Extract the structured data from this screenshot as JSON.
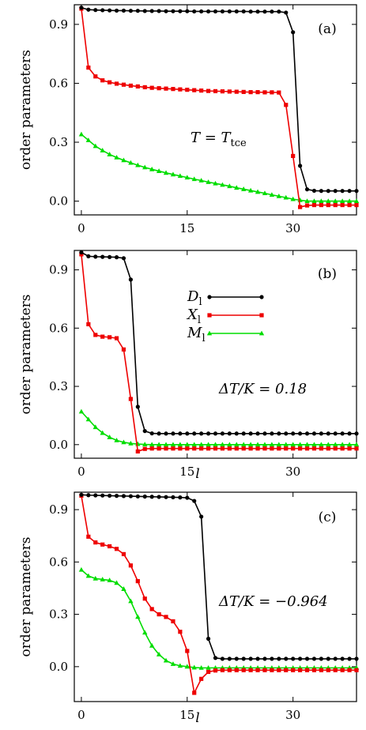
{
  "chart_data": [
    {
      "type": "line",
      "panel_label": "(a)",
      "ylabel": "order parameters",
      "xlabel": "",
      "annotation": "T = T_tce",
      "xlim": [
        -1,
        39
      ],
      "ylim": [
        -0.07,
        1.0
      ],
      "xticks": [
        "0",
        "15",
        "30"
      ],
      "yticks": [
        "0.0",
        "0.3",
        "0.6",
        "0.9"
      ],
      "series": [
        {
          "name": "D_l",
          "color": "#000000",
          "marker": "circle",
          "x": [
            0,
            1,
            2,
            3,
            4,
            5,
            6,
            7,
            8,
            9,
            10,
            11,
            12,
            13,
            14,
            15,
            16,
            17,
            18,
            19,
            20,
            21,
            22,
            23,
            24,
            25,
            26,
            27,
            28,
            29,
            30,
            31,
            32,
            33,
            34,
            35,
            36,
            37,
            38,
            39
          ],
          "y": [
            0.985,
            0.975,
            0.973,
            0.972,
            0.971,
            0.97,
            0.97,
            0.969,
            0.969,
            0.968,
            0.968,
            0.968,
            0.967,
            0.967,
            0.967,
            0.967,
            0.966,
            0.966,
            0.966,
            0.966,
            0.966,
            0.966,
            0.966,
            0.966,
            0.965,
            0.965,
            0.965,
            0.965,
            0.965,
            0.96,
            0.86,
            0.18,
            0.06,
            0.053,
            0.052,
            0.052,
            0.052,
            0.052,
            0.052,
            0.052
          ]
        },
        {
          "name": "X_l",
          "color": "#ee0000",
          "marker": "square",
          "x": [
            0,
            1,
            2,
            3,
            4,
            5,
            6,
            7,
            8,
            9,
            10,
            11,
            12,
            13,
            14,
            15,
            16,
            17,
            18,
            19,
            20,
            21,
            22,
            23,
            24,
            25,
            26,
            27,
            28,
            29,
            30,
            31,
            32,
            33,
            34,
            35,
            36,
            37,
            38,
            39
          ],
          "y": [
            0.98,
            0.68,
            0.635,
            0.615,
            0.605,
            0.598,
            0.593,
            0.588,
            0.584,
            0.58,
            0.577,
            0.575,
            0.573,
            0.571,
            0.569,
            0.567,
            0.565,
            0.563,
            0.561,
            0.56,
            0.559,
            0.558,
            0.557,
            0.556,
            0.555,
            0.555,
            0.554,
            0.554,
            0.553,
            0.49,
            0.23,
            -0.03,
            -0.022,
            -0.02,
            -0.02,
            -0.02,
            -0.02,
            -0.02,
            -0.02,
            -0.02
          ]
        },
        {
          "name": "M_l",
          "color": "#00dd00",
          "marker": "triangle",
          "x": [
            0,
            1,
            2,
            3,
            4,
            5,
            6,
            7,
            8,
            9,
            10,
            11,
            12,
            13,
            14,
            15,
            16,
            17,
            18,
            19,
            20,
            21,
            22,
            23,
            24,
            25,
            26,
            27,
            28,
            29,
            30,
            31,
            32,
            33,
            34,
            35,
            36,
            37,
            38,
            39
          ],
          "y": [
            0.34,
            0.31,
            0.28,
            0.258,
            0.238,
            0.222,
            0.208,
            0.195,
            0.183,
            0.172,
            0.162,
            0.153,
            0.144,
            0.136,
            0.128,
            0.12,
            0.112,
            0.105,
            0.097,
            0.09,
            0.083,
            0.076,
            0.068,
            0.061,
            0.054,
            0.047,
            0.04,
            0.032,
            0.025,
            0.018,
            0.01,
            0.005,
            0.0,
            0.0,
            0.0,
            0.0,
            0.0,
            0.0,
            0.0,
            0.0
          ]
        }
      ]
    },
    {
      "type": "line",
      "panel_label": "(b)",
      "ylabel": "order parameters",
      "xlabel": "l",
      "annotation": "ΔT/K = 0.18",
      "xlim": [
        -1,
        39
      ],
      "ylim": [
        -0.07,
        1.0
      ],
      "xticks": [
        "0",
        "15",
        "30"
      ],
      "yticks": [
        "0.0",
        "0.3",
        "0.6",
        "0.9"
      ],
      "legend": {
        "placement": "upper-middle"
      },
      "series": [
        {
          "name": "D_l",
          "color": "#000000",
          "marker": "circle",
          "x": [
            0,
            1,
            2,
            3,
            4,
            5,
            6,
            7,
            8,
            9,
            10,
            11,
            12,
            13,
            14,
            15,
            16,
            17,
            18,
            19,
            20,
            21,
            22,
            23,
            24,
            25,
            26,
            27,
            28,
            29,
            30,
            31,
            32,
            33,
            34,
            35,
            36,
            37,
            38,
            39
          ],
          "y": [
            0.99,
            0.97,
            0.968,
            0.967,
            0.966,
            0.965,
            0.96,
            0.85,
            0.195,
            0.07,
            0.058,
            0.057,
            0.057,
            0.057,
            0.057,
            0.057,
            0.057,
            0.057,
            0.057,
            0.057,
            0.057,
            0.057,
            0.057,
            0.057,
            0.057,
            0.057,
            0.057,
            0.057,
            0.057,
            0.057,
            0.057,
            0.057,
            0.057,
            0.057,
            0.057,
            0.057,
            0.057,
            0.057,
            0.057,
            0.057
          ]
        },
        {
          "name": "X_l",
          "color": "#ee0000",
          "marker": "square",
          "x": [
            0,
            1,
            2,
            3,
            4,
            5,
            6,
            7,
            8,
            9,
            10,
            11,
            12,
            13,
            14,
            15,
            16,
            17,
            18,
            19,
            20,
            21,
            22,
            23,
            24,
            25,
            26,
            27,
            28,
            29,
            30,
            31,
            32,
            33,
            34,
            35,
            36,
            37,
            38,
            39
          ],
          "y": [
            0.98,
            0.62,
            0.565,
            0.556,
            0.553,
            0.548,
            0.49,
            0.235,
            -0.035,
            -0.022,
            -0.02,
            -0.02,
            -0.02,
            -0.02,
            -0.02,
            -0.02,
            -0.02,
            -0.02,
            -0.02,
            -0.02,
            -0.02,
            -0.02,
            -0.02,
            -0.02,
            -0.02,
            -0.02,
            -0.02,
            -0.02,
            -0.02,
            -0.02,
            -0.02,
            -0.02,
            -0.02,
            -0.02,
            -0.02,
            -0.02,
            -0.02,
            -0.02,
            -0.02,
            -0.02
          ]
        },
        {
          "name": "M_l",
          "color": "#00dd00",
          "marker": "triangle",
          "x": [
            0,
            1,
            2,
            3,
            4,
            5,
            6,
            7,
            8,
            9,
            10,
            11,
            12,
            13,
            14,
            15,
            16,
            17,
            18,
            19,
            20,
            21,
            22,
            23,
            24,
            25,
            26,
            27,
            28,
            29,
            30,
            31,
            32,
            33,
            34,
            35,
            36,
            37,
            38,
            39
          ],
          "y": [
            0.17,
            0.13,
            0.09,
            0.06,
            0.038,
            0.022,
            0.012,
            0.006,
            0.003,
            0.001,
            0.0,
            0.0,
            0.0,
            0.0,
            0.0,
            0.0,
            0.0,
            0.0,
            0.0,
            0.0,
            0.0,
            0.0,
            0.0,
            0.0,
            0.0,
            0.0,
            0.0,
            0.0,
            0.0,
            0.0,
            0.0,
            0.0,
            0.0,
            0.0,
            0.0,
            0.0,
            0.0,
            0.0,
            0.0,
            0.0
          ]
        }
      ]
    },
    {
      "type": "line",
      "panel_label": "(c)",
      "ylabel": "order parameters",
      "xlabel": "l",
      "annotation": "ΔT/K = −0.964",
      "xlim": [
        -1,
        39
      ],
      "ylim": [
        -0.2,
        1.0
      ],
      "xticks": [
        "0",
        "15",
        "30"
      ],
      "yticks": [
        "0.0",
        "0.3",
        "0.6",
        "0.9"
      ],
      "series": [
        {
          "name": "D_l",
          "color": "#000000",
          "marker": "circle",
          "x": [
            0,
            1,
            2,
            3,
            4,
            5,
            6,
            7,
            8,
            9,
            10,
            11,
            12,
            13,
            14,
            15,
            16,
            17,
            18,
            19,
            20,
            21,
            22,
            23,
            24,
            25,
            26,
            27,
            28,
            29,
            30,
            31,
            32,
            33,
            34,
            35,
            36,
            37,
            38,
            39
          ],
          "y": [
            0.985,
            0.983,
            0.982,
            0.981,
            0.98,
            0.979,
            0.978,
            0.977,
            0.976,
            0.975,
            0.974,
            0.973,
            0.972,
            0.971,
            0.97,
            0.968,
            0.95,
            0.86,
            0.16,
            0.05,
            0.045,
            0.045,
            0.045,
            0.045,
            0.045,
            0.045,
            0.045,
            0.045,
            0.045,
            0.045,
            0.045,
            0.045,
            0.045,
            0.045,
            0.045,
            0.045,
            0.045,
            0.045,
            0.045,
            0.045
          ]
        },
        {
          "name": "X_l",
          "color": "#ee0000",
          "marker": "square",
          "x": [
            0,
            1,
            2,
            3,
            4,
            5,
            6,
            7,
            8,
            9,
            10,
            11,
            12,
            13,
            14,
            15,
            16,
            17,
            18,
            19,
            20,
            21,
            22,
            23,
            24,
            25,
            26,
            27,
            28,
            29,
            30,
            31,
            32,
            33,
            34,
            35,
            36,
            37,
            38,
            39
          ],
          "y": [
            0.98,
            0.745,
            0.712,
            0.7,
            0.69,
            0.675,
            0.645,
            0.58,
            0.49,
            0.39,
            0.33,
            0.3,
            0.285,
            0.26,
            0.2,
            0.09,
            -0.15,
            -0.07,
            -0.03,
            -0.022,
            -0.02,
            -0.02,
            -0.02,
            -0.02,
            -0.02,
            -0.02,
            -0.02,
            -0.02,
            -0.02,
            -0.02,
            -0.02,
            -0.02,
            -0.02,
            -0.02,
            -0.02,
            -0.02,
            -0.02,
            -0.02,
            -0.02,
            -0.02
          ]
        },
        {
          "name": "M_l",
          "color": "#00dd00",
          "marker": "triangle",
          "x": [
            0,
            1,
            2,
            3,
            4,
            5,
            6,
            7,
            8,
            9,
            10,
            11,
            12,
            13,
            14,
            15,
            16,
            17,
            18,
            19,
            20,
            21,
            22,
            23,
            24,
            25,
            26,
            27,
            28,
            29,
            30,
            31,
            32,
            33,
            34,
            35,
            36,
            37,
            38,
            39
          ],
          "y": [
            0.555,
            0.52,
            0.505,
            0.5,
            0.495,
            0.48,
            0.445,
            0.375,
            0.285,
            0.195,
            0.12,
            0.07,
            0.035,
            0.015,
            0.005,
            0.0,
            -0.005,
            -0.007,
            -0.007,
            -0.007,
            -0.007,
            -0.007,
            -0.007,
            -0.007,
            -0.007,
            -0.007,
            -0.007,
            -0.007,
            -0.007,
            -0.007,
            -0.007,
            -0.007,
            -0.007,
            -0.007,
            -0.007,
            -0.007,
            -0.007,
            -0.007,
            -0.007,
            -0.007
          ]
        }
      ]
    }
  ]
}
